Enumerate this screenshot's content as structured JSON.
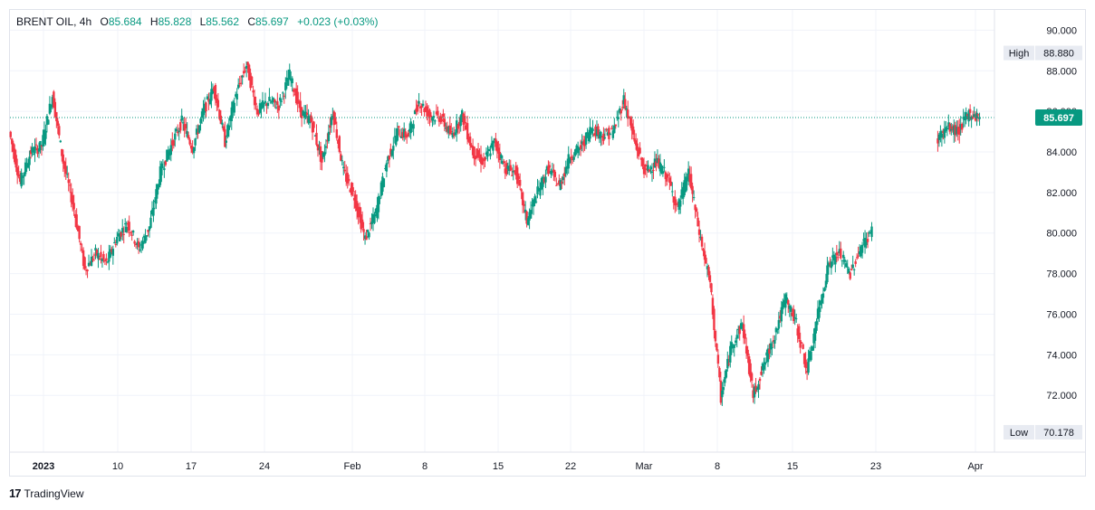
{
  "header": {
    "symbol": "BRENT OIL, 4h",
    "open_key": "O",
    "open": "85.684",
    "high_key": "H",
    "high": "85.828",
    "low_key": "L",
    "low": "85.562",
    "close_key": "C",
    "close": "85.697",
    "change": "+0.023 (+0.03%)"
  },
  "brand": {
    "logo": "17",
    "name": "TradingView"
  },
  "colors": {
    "up": "#089981",
    "down": "#f23645",
    "grid": "#f0f3fa",
    "axis": "#e0e3eb",
    "tag_bg": "#e8ebf2"
  },
  "chart_data": {
    "type": "candlestick",
    "interval": "4h",
    "y_range": [
      69.2,
      91.0
    ],
    "y_ticks": [
      "90.000",
      "88.000",
      "86.000",
      "84.000",
      "82.000",
      "80.000",
      "78.000",
      "76.000",
      "74.000",
      "72.000"
    ],
    "y_tick_values": [
      90,
      88,
      86,
      84,
      82,
      80,
      78,
      76,
      74,
      72
    ],
    "x_ticks": [
      "2023",
      "10",
      "17",
      "24",
      "Feb",
      "8",
      "15",
      "22",
      "Mar",
      "8",
      "15",
      "23",
      "Apr"
    ],
    "x_ticks_bold": [
      "2023"
    ],
    "high_tag": {
      "label": "High",
      "value": "88.880"
    },
    "low_tag": {
      "label": "Low",
      "value": "70.178"
    },
    "last_price": {
      "value": 85.697,
      "label": "85.697"
    },
    "segments": [
      {
        "name": "price-to-mar-31",
        "points": [
          [
            0,
            85.0
          ],
          [
            1,
            82.5
          ],
          [
            2,
            84.0
          ],
          [
            3,
            84.3
          ],
          [
            4,
            86.8
          ],
          [
            5,
            83.5
          ],
          [
            6,
            81.2
          ],
          [
            7,
            78.2
          ],
          [
            8,
            79.0
          ],
          [
            9,
            78.5
          ],
          [
            10,
            79.8
          ],
          [
            11,
            80.5
          ],
          [
            12,
            79.2
          ],
          [
            13,
            80.3
          ],
          [
            14,
            83.0
          ],
          [
            15,
            84.3
          ],
          [
            16,
            85.5
          ],
          [
            17,
            84.2
          ],
          [
            18,
            86.0
          ],
          [
            19,
            87.2
          ],
          [
            20,
            84.5
          ],
          [
            21,
            86.8
          ],
          [
            22,
            88.3
          ],
          [
            23,
            86.0
          ],
          [
            24,
            86.5
          ],
          [
            25,
            86.3
          ],
          [
            26,
            87.8
          ],
          [
            27,
            86.0
          ],
          [
            28,
            85.5
          ],
          [
            29,
            83.5
          ],
          [
            30,
            86.0
          ],
          [
            31,
            83.0
          ],
          [
            32,
            81.8
          ],
          [
            33,
            79.7
          ],
          [
            34,
            81.0
          ],
          [
            35,
            83.5
          ],
          [
            36,
            85.0
          ],
          [
            37,
            84.8
          ],
          [
            38,
            86.5
          ],
          [
            39,
            85.8
          ],
          [
            40,
            85.7
          ],
          [
            41,
            84.8
          ],
          [
            42,
            85.8
          ],
          [
            43,
            84.0
          ],
          [
            44,
            83.5
          ],
          [
            45,
            84.5
          ],
          [
            46,
            83.2
          ],
          [
            47,
            83.0
          ],
          [
            48,
            80.6
          ],
          [
            49,
            82.0
          ],
          [
            50,
            83.2
          ],
          [
            51,
            82.3
          ],
          [
            52,
            83.8
          ],
          [
            53,
            84.2
          ],
          [
            54,
            85.2
          ],
          [
            55,
            84.8
          ],
          [
            56,
            85.0
          ],
          [
            57,
            86.6
          ],
          [
            58,
            84.5
          ],
          [
            59,
            83.0
          ],
          [
            60,
            83.5
          ],
          [
            61,
            82.8
          ],
          [
            62,
            81.2
          ],
          [
            63,
            83.0
          ],
          [
            64,
            80.0
          ],
          [
            65,
            77.5
          ],
          [
            66,
            71.9
          ],
          [
            67,
            74.5
          ],
          [
            68,
            75.5
          ],
          [
            69,
            72.0
          ],
          [
            70,
            73.5
          ],
          [
            71,
            75.0
          ],
          [
            72,
            76.8
          ],
          [
            73,
            75.5
          ],
          [
            74,
            73.2
          ],
          [
            75,
            76.0
          ],
          [
            76,
            78.5
          ],
          [
            77,
            79.0
          ],
          [
            78,
            78.0
          ],
          [
            79,
            79.3
          ],
          [
            80,
            80.1
          ]
        ]
      },
      {
        "name": "price-apr",
        "points": [
          [
            86,
            84.6
          ],
          [
            87,
            85.2
          ],
          [
            88,
            85.0
          ],
          [
            89,
            85.9
          ],
          [
            90,
            85.7
          ]
        ]
      }
    ]
  }
}
